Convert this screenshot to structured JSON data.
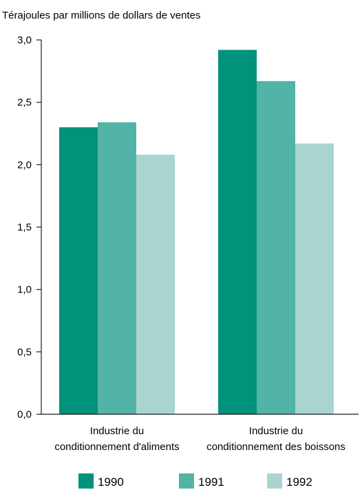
{
  "chart_data": {
    "type": "bar",
    "ylabel": "Térajoules par millions de dollars de ventes",
    "categories": [
      [
        "Industrie du",
        "conditionnement d'aliments"
      ],
      [
        "Industrie du",
        "conditionnement des boissons"
      ]
    ],
    "series": [
      {
        "name": "1990",
        "color": "#00927a",
        "values": [
          2.3,
          2.92
        ]
      },
      {
        "name": "1991",
        "color": "#52b3a7",
        "values": [
          2.34,
          2.67
        ]
      },
      {
        "name": "1992",
        "color": "#a8d5cf",
        "values": [
          2.08,
          2.17
        ]
      }
    ],
    "ylim": [
      0,
      3.0
    ],
    "yticks": [
      {
        "value": 0.0,
        "label": "0,0"
      },
      {
        "value": 0.5,
        "label": "0,5"
      },
      {
        "value": 1.0,
        "label": "1,0"
      },
      {
        "value": 1.5,
        "label": "1,5"
      },
      {
        "value": 2.0,
        "label": "2,0"
      },
      {
        "value": 2.5,
        "label": "2,5"
      },
      {
        "value": 3.0,
        "label": "3,0"
      }
    ],
    "grid": false,
    "legend": "bottom"
  }
}
